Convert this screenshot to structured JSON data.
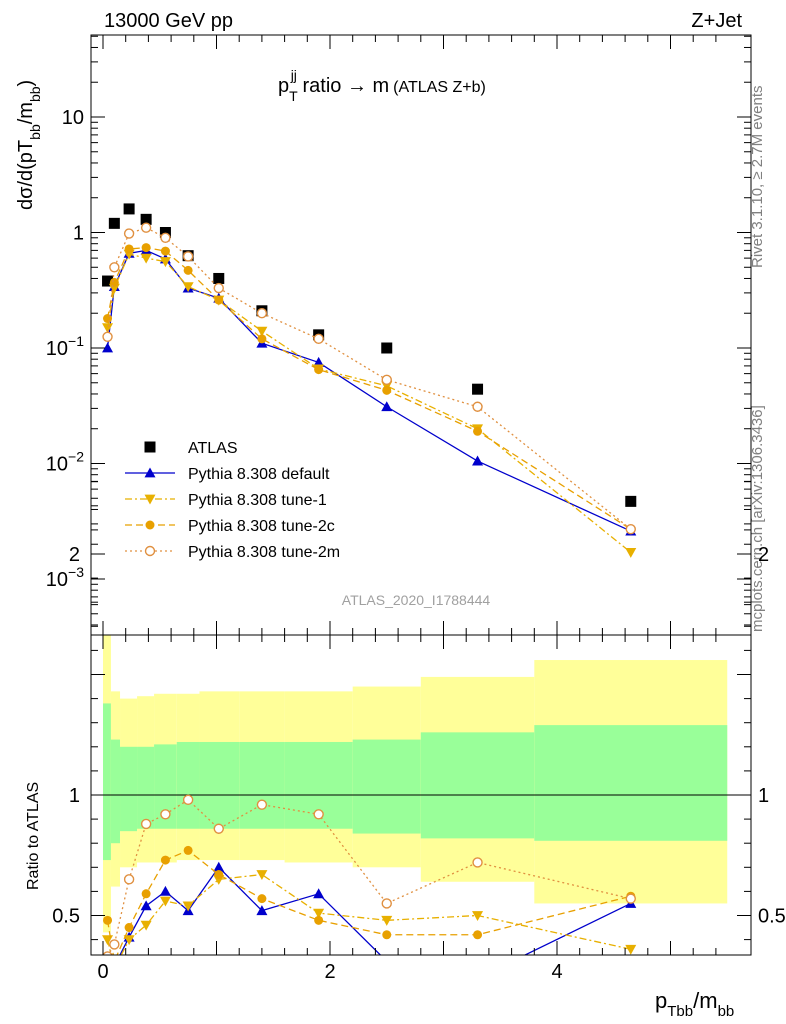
{
  "header": {
    "left": "13000 GeV pp",
    "right": "Z+Jet"
  },
  "side": {
    "rivet": "Rivet 3.1.10, ≥ 2.7M events",
    "source": "mcplots.cern.ch [arXiv:1306.3436]"
  },
  "chart_data": {
    "type": "scatter",
    "title": "p_T^jj ratio → m (ATLAS Z+b)",
    "title_parts": {
      "p": "p",
      "sub": "T",
      "sup": "jj",
      "rest": " ratio → m",
      "small": "(ATLAS Z+b)"
    },
    "analysis_id": "ATLAS_2020_I1788444",
    "ylabel": "dσ/d(pT_bb/m_bb)",
    "ylabel_parts": {
      "pre": "dσ/d(pT",
      "sub1": "bb",
      "mid": "/m",
      "sub2": "bb",
      "post": ")"
    },
    "ratio_ylabel": "Ratio to ATLAS",
    "xlabel": "p_Tbb/m_bb",
    "xlabel_parts": {
      "p": "p",
      "sub1": "Tbb",
      "mid": "/m",
      "sub2": "bb"
    },
    "xlim": [
      -0.1,
      5.6
    ],
    "ylim": [
      0.0003,
      60
    ],
    "yscale": "log",
    "ratio_ylim": [
      0.35,
      2.35
    ],
    "x_ticks": [
      "0",
      "2",
      "4"
    ],
    "y_ticks": [
      "10^-3",
      "10^-2",
      "10^-1",
      "1",
      "10"
    ],
    "ratio_ticks": [
      "0.5",
      "1",
      "2"
    ],
    "legend": "left-middle",
    "x": [
      0.04,
      0.1,
      0.23,
      0.38,
      0.55,
      0.75,
      1.02,
      1.4,
      1.9,
      2.5,
      3.3,
      4.65
    ],
    "xedges": [
      0.0,
      0.07,
      0.15,
      0.3,
      0.45,
      0.65,
      0.85,
      1.2,
      1.6,
      2.2,
      2.8,
      3.8,
      5.5
    ],
    "band_green": [
      [
        0.73,
        1.38
      ],
      [
        0.8,
        1.23
      ],
      [
        0.85,
        1.2
      ],
      [
        0.86,
        1.2
      ],
      [
        0.86,
        1.21
      ],
      [
        0.86,
        1.22
      ],
      [
        0.86,
        1.22
      ],
      [
        0.86,
        1.22
      ],
      [
        0.86,
        1.22
      ],
      [
        0.84,
        1.23
      ],
      [
        0.82,
        1.26
      ],
      [
        0.81,
        1.29
      ]
    ],
    "band_yellow": [
      [
        0.43,
        1.7
      ],
      [
        0.62,
        1.43
      ],
      [
        0.7,
        1.4
      ],
      [
        0.72,
        1.41
      ],
      [
        0.72,
        1.42
      ],
      [
        0.73,
        1.42
      ],
      [
        0.73,
        1.43
      ],
      [
        0.73,
        1.43
      ],
      [
        0.72,
        1.43
      ],
      [
        0.7,
        1.45
      ],
      [
        0.64,
        1.49
      ],
      [
        0.55,
        1.56
      ]
    ],
    "series": [
      {
        "name": "ATLAS",
        "marker": "square",
        "color": "#000000",
        "values": [
          0.38,
          1.2,
          1.6,
          1.3,
          1.0,
          0.63,
          0.4,
          0.21,
          0.13,
          0.1,
          0.044,
          0.0047
        ],
        "ratio": [
          1,
          1,
          1,
          1,
          1,
          1,
          1,
          1,
          1,
          1,
          1,
          1
        ]
      },
      {
        "name": "Pythia 8.308 default",
        "marker": "triangle-up",
        "color": "#0000cc",
        "line": "solid",
        "values": [
          0.1,
          0.34,
          0.66,
          0.7,
          0.59,
          0.33,
          0.27,
          0.11,
          0.075,
          0.031,
          0.0105,
          0.0026
        ],
        "ratio": [
          0.27,
          0.29,
          0.41,
          0.54,
          0.6,
          0.52,
          0.7,
          0.52,
          0.59,
          0.31,
          0.24,
          0.55
        ]
      },
      {
        "name": "Pythia 8.308 tune-1",
        "marker": "triangle-down",
        "color": "#e8b000",
        "line": "dashdot",
        "values": [
          0.15,
          0.33,
          0.65,
          0.6,
          0.56,
          0.34,
          0.26,
          0.14,
          0.066,
          0.047,
          0.02,
          0.0017
        ],
        "ratio": [
          0.4,
          0.28,
          0.4,
          0.46,
          0.56,
          0.54,
          0.65,
          0.67,
          0.51,
          0.48,
          0.5,
          0.36
        ]
      },
      {
        "name": "Pythia 8.308 tune-2c",
        "marker": "circle-filled",
        "color": "#e8a000",
        "line": "dashed",
        "values": [
          0.18,
          0.37,
          0.72,
          0.74,
          0.69,
          0.47,
          0.26,
          0.12,
          0.065,
          0.043,
          0.019,
          0.0027
        ],
        "ratio": [
          0.48,
          0.31,
          0.45,
          0.59,
          0.73,
          0.77,
          0.67,
          0.57,
          0.48,
          0.42,
          0.42,
          0.58
        ]
      },
      {
        "name": "Pythia 8.308 tune-2m",
        "marker": "circle-open",
        "color": "#e09040",
        "line": "dotted",
        "values": [
          0.125,
          0.5,
          0.98,
          1.1,
          0.9,
          0.62,
          0.33,
          0.2,
          0.12,
          0.053,
          0.031,
          0.0027
        ],
        "ratio": [
          0.33,
          0.38,
          0.65,
          0.88,
          0.92,
          0.98,
          0.86,
          0.96,
          0.92,
          0.55,
          0.72,
          0.57
        ]
      }
    ]
  }
}
